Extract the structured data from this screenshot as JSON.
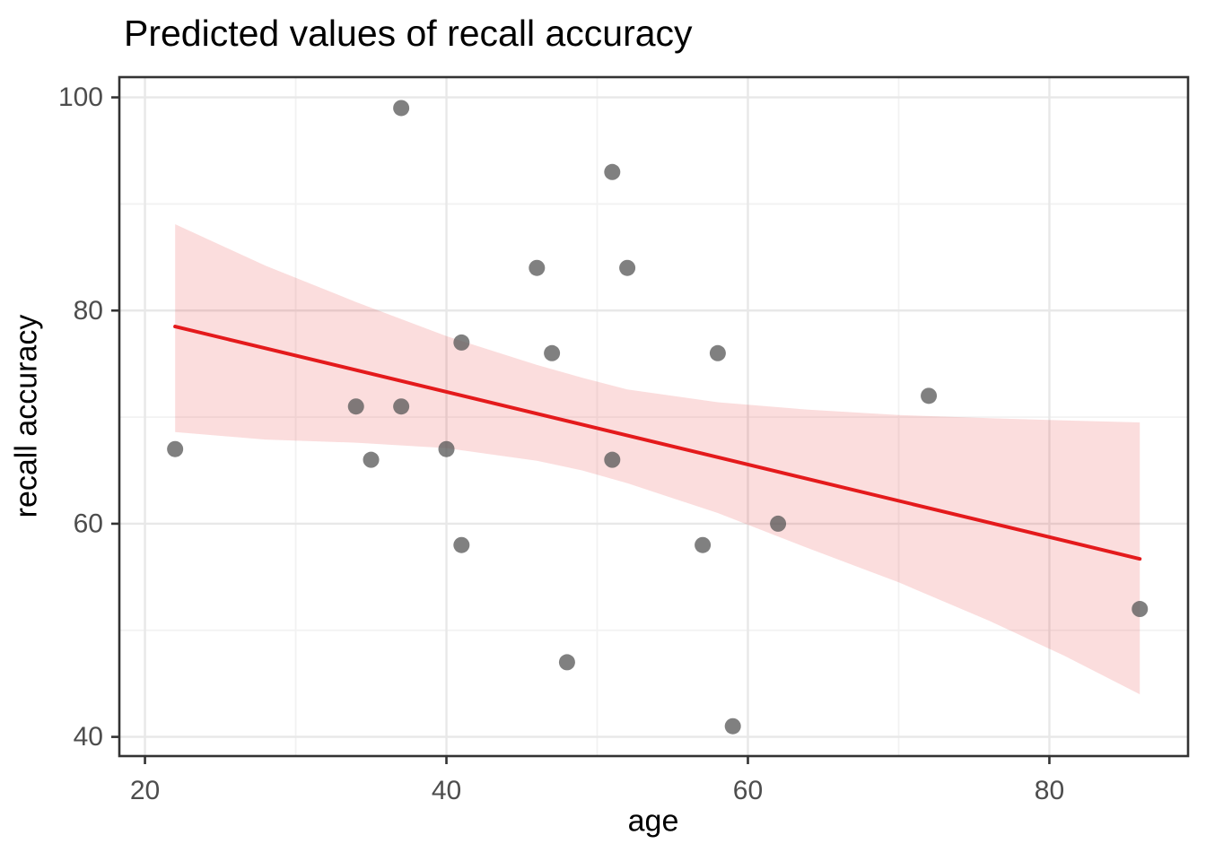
{
  "chart_data": {
    "type": "scatter",
    "title": "Predicted values of recall accuracy",
    "xlabel": "age",
    "ylabel": "recall accuracy",
    "x_domain": [
      18.3,
      89.2
    ],
    "y_domain": [
      38.2,
      101.9
    ],
    "x_ticks": [
      20,
      40,
      60,
      80
    ],
    "y_ticks": [
      40,
      60,
      80,
      100
    ],
    "x_minor_ticks": [
      30,
      50,
      70
    ],
    "y_minor_ticks": [
      50,
      70,
      90
    ],
    "grid": true,
    "legend": false,
    "points": [
      [
        22,
        67
      ],
      [
        34,
        71
      ],
      [
        35,
        66
      ],
      [
        37,
        71
      ],
      [
        37,
        99
      ],
      [
        40,
        67
      ],
      [
        41,
        77
      ],
      [
        41,
        58
      ],
      [
        46,
        84
      ],
      [
        47,
        76
      ],
      [
        48,
        47
      ],
      [
        51,
        93
      ],
      [
        51,
        66
      ],
      [
        52,
        84
      ],
      [
        57,
        58
      ],
      [
        58,
        76
      ],
      [
        59,
        41
      ],
      [
        62,
        60
      ],
      [
        72,
        72
      ],
      [
        86,
        52
      ]
    ],
    "regression_line": {
      "x1": 22,
      "y1": 78.5,
      "x2": 86,
      "y2": 56.7
    },
    "confidence_band": [
      {
        "x": 22,
        "lower": 68.6,
        "upper": 88.1
      },
      {
        "x": 28,
        "lower": 67.9,
        "upper": 84.2
      },
      {
        "x": 34,
        "lower": 67.6,
        "upper": 80.8
      },
      {
        "x": 40,
        "lower": 67.1,
        "upper": 77.6
      },
      {
        "x": 46,
        "lower": 65.9,
        "upper": 74.9
      },
      {
        "x": 49,
        "lower": 65.0,
        "upper": 73.7
      },
      {
        "x": 52,
        "lower": 63.8,
        "upper": 72.6
      },
      {
        "x": 58,
        "lower": 61.0,
        "upper": 71.4
      },
      {
        "x": 64,
        "lower": 57.7,
        "upper": 70.7
      },
      {
        "x": 70,
        "lower": 54.5,
        "upper": 70.2
      },
      {
        "x": 76,
        "lower": 50.9,
        "upper": 69.9
      },
      {
        "x": 81,
        "lower": 47.6,
        "upper": 69.7
      },
      {
        "x": 86,
        "lower": 44.0,
        "upper": 69.5
      }
    ],
    "colors": {
      "point": "#555555",
      "point_opacity": 0.75,
      "line": "#e41a1c",
      "band": "#e41a1c",
      "band_opacity": 0.15,
      "grid_major": "#e8e8e8",
      "grid_minor": "#f2f2f2",
      "panel_border": "#333333",
      "tick_mark": "#333333",
      "tick_label": "#4d4d4d",
      "title": "#000000"
    }
  }
}
